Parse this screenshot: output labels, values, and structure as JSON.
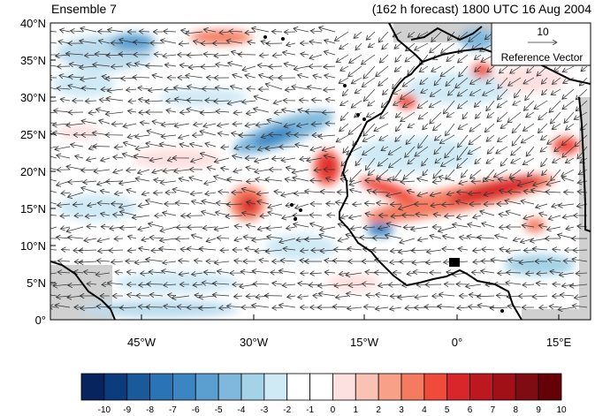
{
  "map": {
    "left_title": "Ensemble 7",
    "right_title": "(162 h forecast) 1800 UTC 16 Aug 2004",
    "lat_ticks": [
      "40°N",
      "35°N",
      "30°N",
      "25°N",
      "20°N",
      "15°N",
      "10°N",
      "5°N",
      "0°"
    ],
    "lon_ticks": [
      "45°W",
      "30°W",
      "15°W",
      "0°",
      "15°E"
    ],
    "reference_vector": {
      "magnitude_label": "10",
      "label": "Reference Vector"
    },
    "colorbar": {
      "labels": [
        "-10",
        "-9",
        "-8",
        "-7",
        "-6",
        "-5",
        "-4",
        "-3",
        "-2",
        "-1",
        "0",
        "1",
        "2",
        "3",
        "4",
        "5",
        "6",
        "7",
        "8",
        "9",
        "10"
      ],
      "colors": [
        "#08245e",
        "#0b3c7c",
        "#1b5a9a",
        "#2a73b5",
        "#3b86c2",
        "#5b9fd0",
        "#7fb8dc",
        "#a4d2e6",
        "#cfe9f5",
        "#ffffff",
        "#ffffff",
        "#fde0e0",
        "#fac1b5",
        "#f9a188",
        "#f47a60",
        "#ef4a3a",
        "#d8262a",
        "#bd1820",
        "#a01016",
        "#7f0c12",
        "#650008"
      ]
    }
  }
}
